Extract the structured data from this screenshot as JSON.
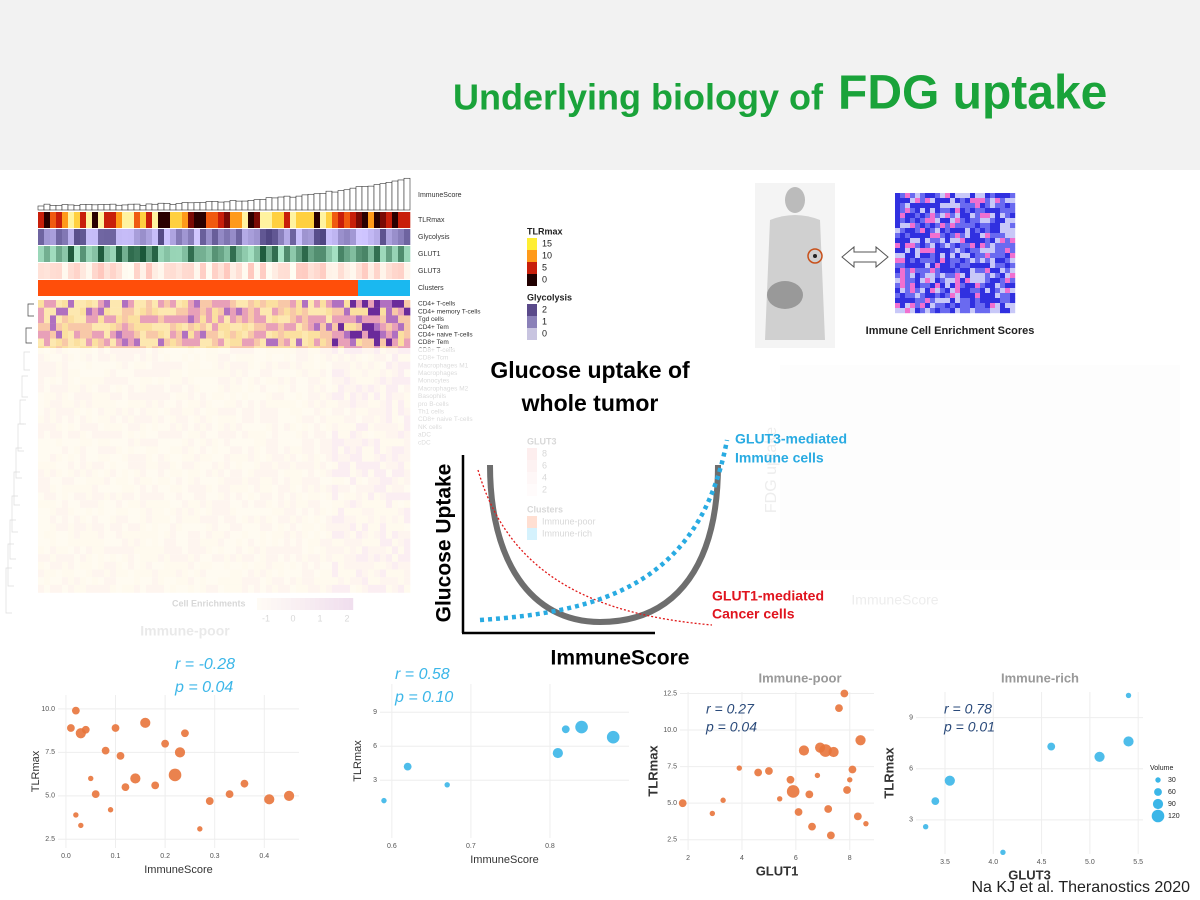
{
  "title": {
    "lead": "Underlying biology of",
    "emphasis": "FDG uptake"
  },
  "heatmap": {
    "annotations": [
      "ImmuneScore",
      "TLRmax",
      "Glycolysis",
      "GLUT1",
      "GLUT3",
      "Clusters"
    ],
    "rows": [
      "CD4+ T-cells",
      "CD4+ memory T-cells",
      "Tgd cells",
      "CD4+ Tem",
      "CD4+ naive T-cells",
      "CD8+ Tem",
      "CD8+ T-cells",
      "CD8+ Tcm",
      "Macrophages M1",
      "Macrophages",
      "Monocytes",
      "Macrophages M2",
      "Basophils",
      "pro B-cells",
      "Th1 cells",
      "CD8+ naive T-cells",
      "NK cells",
      "aDC",
      "cDC"
    ],
    "legend": {
      "tlrmax": {
        "title": "TLRmax",
        "labels": [
          "15",
          "10",
          "5",
          "0"
        ]
      },
      "glycolysis": {
        "title": "Glycolysis",
        "labels": [
          "2",
          "1",
          "0"
        ]
      },
      "glut3": {
        "title": "GLUT3",
        "labels": [
          "8",
          "6",
          "4",
          "2"
        ]
      },
      "clusters": {
        "title": "Clusters",
        "labels": [
          "Immune-poor",
          "Immune-rich"
        ]
      },
      "enrichment": {
        "title": "Cell Enrichments",
        "labels": [
          "-1",
          "0",
          "1",
          "2"
        ]
      }
    }
  },
  "pet": {
    "caption": "Immune Cell Enrichment Scores"
  },
  "faded_plot": {
    "y_label": "FDG uptake",
    "x_label": "ImmuneScore"
  },
  "group_label": "Immune-poor",
  "diagram": {
    "title_lines": [
      "Glucose uptake of",
      "whole tumor"
    ],
    "y_label": "Glucose Uptake",
    "x_label": "ImmuneScore",
    "glut3_lines": [
      "GLUT3-mediated",
      "Immune cells"
    ],
    "glut1_lines": [
      "GLUT1-mediated",
      "Cancer cells"
    ]
  },
  "scatters": [
    {
      "r": "r = -0.28",
      "p": "p = 0.04",
      "x_label": "ImmuneScore",
      "y_label": "TLRmax",
      "xlim": [
        -0.016,
        0.47
      ],
      "ylim": [
        2.0,
        10.8
      ],
      "xticks": [
        {
          "value": 0,
          "label": "0.0"
        },
        0.1,
        0.2,
        0.3,
        0.4
      ],
      "yticks": [
        2.5,
        {
          "value": 5,
          "label": "5.0"
        },
        7.5,
        {
          "value": 10,
          "label": "10.0"
        }
      ],
      "points": [
        {
          "x": 0.01,
          "y": 8.9,
          "size": 60
        },
        {
          "x": 0.02,
          "y": 9.9,
          "size": 60
        },
        {
          "x": 0.03,
          "y": 8.6,
          "size": 90
        },
        {
          "x": 0.04,
          "y": 8.8,
          "size": 60
        },
        {
          "x": 0.02,
          "y": 3.9,
          "size": 30
        },
        {
          "x": 0.03,
          "y": 3.3,
          "size": 30
        },
        {
          "x": 0.05,
          "y": 6.0,
          "size": 30
        },
        {
          "x": 0.06,
          "y": 5.1,
          "size": 60
        },
        {
          "x": 0.08,
          "y": 7.6,
          "size": 60
        },
        {
          "x": 0.09,
          "y": 4.2,
          "size": 30
        },
        {
          "x": 0.1,
          "y": 8.9,
          "size": 60
        },
        {
          "x": 0.11,
          "y": 7.3,
          "size": 60
        },
        {
          "x": 0.12,
          "y": 5.5,
          "size": 60
        },
        {
          "x": 0.14,
          "y": 6.0,
          "size": 90
        },
        {
          "x": 0.16,
          "y": 9.2,
          "size": 90
        },
        {
          "x": 0.18,
          "y": 5.6,
          "size": 60
        },
        {
          "x": 0.2,
          "y": 8.0,
          "size": 60
        },
        {
          "x": 0.22,
          "y": 6.2,
          "size": 120
        },
        {
          "x": 0.23,
          "y": 7.5,
          "size": 90
        },
        {
          "x": 0.24,
          "y": 8.6,
          "size": 60
        },
        {
          "x": 0.27,
          "y": 3.1,
          "size": 30
        },
        {
          "x": 0.29,
          "y": 4.7,
          "size": 60
        },
        {
          "x": 0.33,
          "y": 5.1,
          "size": 60
        },
        {
          "x": 0.36,
          "y": 5.7,
          "size": 60
        },
        {
          "x": 0.41,
          "y": 4.8,
          "size": 90
        },
        {
          "x": 0.45,
          "y": 5.0,
          "size": 90
        }
      ]
    },
    {
      "r": "r = 0.58",
      "p": "p = 0.10",
      "x_label": "ImmuneScore",
      "y_label": "TLRmax",
      "xlim": [
        0.585,
        0.9
      ],
      "ylim": [
        -2.1,
        11.5
      ],
      "xticks": [
        0.6,
        0.7,
        0.8
      ],
      "yticks": [
        3,
        6,
        9
      ],
      "points": [
        {
          "x": 0.59,
          "y": 1.2,
          "size": 30
        },
        {
          "x": 0.62,
          "y": 4.2,
          "size": 60
        },
        {
          "x": 0.67,
          "y": 2.6,
          "size": 30
        },
        {
          "x": 0.81,
          "y": 5.4,
          "size": 90
        },
        {
          "x": 0.82,
          "y": 7.5,
          "size": 60
        },
        {
          "x": 0.84,
          "y": 7.7,
          "size": 120
        },
        {
          "x": 0.88,
          "y": 6.8,
          "size": 120
        }
      ]
    },
    {
      "r": "r = 0.27",
      "p": "p = 0.04",
      "x_label": "GLUT1",
      "y_label": "TLRmax",
      "group": "Immune-poor",
      "xlim": [
        1.7,
        8.9
      ],
      "ylim": [
        1.8,
        12.6
      ],
      "xticks": [
        2,
        4,
        6,
        8
      ],
      "yticks": [
        2.5,
        {
          "value": 5,
          "label": "5.0"
        },
        7.5,
        {
          "value": 10,
          "label": "10.0"
        },
        12.5
      ],
      "points": [
        {
          "x": 1.8,
          "y": 5.0,
          "size": 60
        },
        {
          "x": 2.9,
          "y": 4.3,
          "size": 30
        },
        {
          "x": 3.3,
          "y": 5.2,
          "size": 30
        },
        {
          "x": 3.9,
          "y": 7.4,
          "size": 30
        },
        {
          "x": 4.6,
          "y": 7.1,
          "size": 60
        },
        {
          "x": 5.0,
          "y": 7.2,
          "size": 60
        },
        {
          "x": 5.4,
          "y": 5.3,
          "size": 30
        },
        {
          "x": 5.8,
          "y": 6.6,
          "size": 60
        },
        {
          "x": 5.9,
          "y": 5.8,
          "size": 120
        },
        {
          "x": 6.1,
          "y": 4.4,
          "size": 60
        },
        {
          "x": 6.3,
          "y": 8.6,
          "size": 90
        },
        {
          "x": 6.5,
          "y": 5.6,
          "size": 60
        },
        {
          "x": 6.6,
          "y": 3.4,
          "size": 60
        },
        {
          "x": 6.8,
          "y": 6.9,
          "size": 30
        },
        {
          "x": 6.9,
          "y": 8.8,
          "size": 90
        },
        {
          "x": 7.1,
          "y": 8.6,
          "size": 120
        },
        {
          "x": 7.2,
          "y": 4.6,
          "size": 60
        },
        {
          "x": 7.3,
          "y": 2.8,
          "size": 60
        },
        {
          "x": 7.4,
          "y": 8.5,
          "size": 90
        },
        {
          "x": 7.6,
          "y": 11.5,
          "size": 60
        },
        {
          "x": 7.8,
          "y": 12.5,
          "size": 60
        },
        {
          "x": 7.9,
          "y": 5.9,
          "size": 60
        },
        {
          "x": 8.0,
          "y": 6.6,
          "size": 30
        },
        {
          "x": 8.1,
          "y": 7.3,
          "size": 60
        },
        {
          "x": 8.3,
          "y": 4.1,
          "size": 60
        },
        {
          "x": 8.4,
          "y": 9.3,
          "size": 90
        },
        {
          "x": 8.6,
          "y": 3.6,
          "size": 30
        }
      ]
    },
    {
      "r": "r = 0.78",
      "p": "p = 0.01",
      "x_label": "GLUT3",
      "y_label": "TLRmax",
      "group": "Immune-rich",
      "xlim": [
        3.2,
        5.55
      ],
      "ylim": [
        1.0,
        10.5
      ],
      "xticks": [
        3.5,
        {
          "value": 4,
          "label": "4.0"
        },
        4.5,
        {
          "value": 5,
          "label": "5.0"
        },
        5.5
      ],
      "yticks": [
        3,
        6,
        9
      ],
      "points": [
        {
          "x": 3.3,
          "y": 2.6,
          "size": 30
        },
        {
          "x": 3.4,
          "y": 4.1,
          "size": 60
        },
        {
          "x": 3.55,
          "y": 5.3,
          "size": 90
        },
        {
          "x": 4.1,
          "y": 1.1,
          "size": 30
        },
        {
          "x": 4.6,
          "y": 7.3,
          "size": 60
        },
        {
          "x": 5.1,
          "y": 6.7,
          "size": 90
        },
        {
          "x": 5.4,
          "y": 7.6,
          "size": 90
        },
        {
          "x": 5.4,
          "y": 10.3,
          "size": 30
        }
      ],
      "legend": {
        "title": "Volume",
        "sizes": [
          30,
          60,
          90,
          120
        ]
      }
    }
  ],
  "citation": "Na KJ et al. Theranostics 2020"
}
